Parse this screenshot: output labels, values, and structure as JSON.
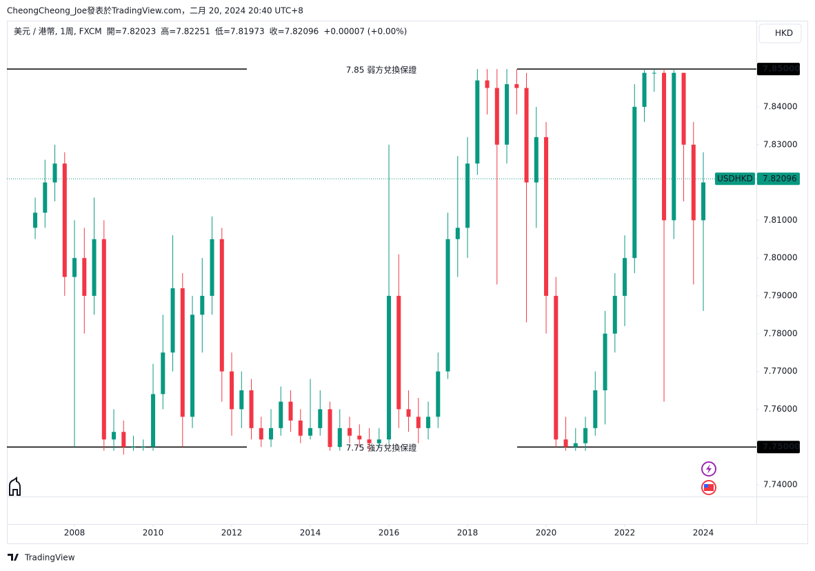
{
  "header": "CheongCheong_Joe發表於TradingView.com，二月 20, 2024 20:40 UTC+8",
  "footer": "TradingView",
  "currency_button": "HKD",
  "legend": {
    "symbol": "美元 / 港幣, 1周, FXCM",
    "ohlc": [
      {
        "label": "開=",
        "value": "7.82023"
      },
      {
        "label": "高=",
        "value": "7.82251"
      },
      {
        "label": "低=",
        "value": "7.81973"
      },
      {
        "label": "收=",
        "value": "7.82096"
      }
    ],
    "change": "+0.00007 (+0.00%)"
  },
  "chart_data": {
    "type": "candlestick",
    "up_color": "#089981",
    "down_color": "#f23645",
    "x": [
      2007.0,
      2007.25,
      2007.5,
      2007.75,
      2008.0,
      2008.25,
      2008.5,
      2008.75,
      2009.0,
      2009.25,
      2009.5,
      2009.75,
      2010.0,
      2010.25,
      2010.5,
      2010.75,
      2011.0,
      2011.25,
      2011.5,
      2011.75,
      2012.0,
      2012.25,
      2012.5,
      2012.75,
      2013.0,
      2013.25,
      2013.5,
      2013.75,
      2014.0,
      2014.25,
      2014.5,
      2014.75,
      2015.0,
      2015.25,
      2015.5,
      2015.75,
      2016.0,
      2016.25,
      2016.5,
      2016.75,
      2017.0,
      2017.25,
      2017.5,
      2017.75,
      2018.0,
      2018.25,
      2018.5,
      2018.75,
      2019.0,
      2019.25,
      2019.5,
      2019.75,
      2020.0,
      2020.25,
      2020.5,
      2020.75,
      2021.0,
      2021.25,
      2021.5,
      2021.75,
      2022.0,
      2022.25,
      2022.5,
      2022.75,
      2023.0,
      2023.25,
      2023.5,
      2023.75,
      2024.0
    ],
    "open": [
      7.808,
      7.812,
      7.82,
      7.825,
      7.795,
      7.8,
      7.79,
      7.805,
      7.752,
      7.754,
      7.75,
      7.75,
      7.75,
      7.764,
      7.775,
      7.792,
      7.758,
      7.785,
      7.79,
      7.805,
      7.77,
      7.76,
      7.765,
      7.755,
      7.752,
      7.755,
      7.762,
      7.757,
      7.753,
      7.755,
      7.76,
      7.75,
      7.755,
      7.753,
      7.752,
      7.751,
      7.752,
      7.79,
      7.76,
      7.758,
      7.755,
      7.758,
      7.77,
      7.805,
      7.808,
      7.825,
      7.847,
      7.845,
      7.83,
      7.846,
      7.845,
      7.82,
      7.832,
      7.79,
      7.752,
      7.75,
      7.751,
      7.755,
      7.765,
      7.78,
      7.79,
      7.8,
      7.84,
      7.849,
      7.849,
      7.81,
      7.849,
      7.83,
      7.81
    ],
    "high": [
      7.816,
      7.826,
      7.83,
      7.828,
      7.81,
      7.808,
      7.816,
      7.81,
      7.76,
      7.757,
      7.753,
      7.752,
      7.772,
      7.785,
      7.806,
      7.796,
      7.79,
      7.8,
      7.811,
      7.808,
      7.775,
      7.77,
      7.768,
      7.758,
      7.76,
      7.766,
      7.765,
      7.76,
      7.768,
      7.765,
      7.762,
      7.76,
      7.758,
      7.756,
      7.755,
      7.755,
      7.83,
      7.801,
      7.765,
      7.763,
      7.762,
      7.775,
      7.812,
      7.827,
      7.832,
      7.85,
      7.85,
      7.85,
      7.85,
      7.85,
      7.849,
      7.84,
      7.836,
      7.795,
      7.758,
      7.755,
      7.758,
      7.77,
      7.786,
      7.796,
      7.806,
      7.846,
      7.85,
      7.85,
      7.85,
      7.85,
      7.849,
      7.836,
      7.828
    ],
    "low": [
      7.805,
      7.808,
      7.815,
      7.79,
      7.75,
      7.78,
      7.785,
      7.749,
      7.749,
      7.748,
      7.749,
      7.749,
      7.749,
      7.76,
      7.77,
      7.75,
      7.755,
      7.775,
      7.785,
      7.762,
      7.753,
      7.755,
      7.752,
      7.75,
      7.75,
      7.753,
      7.754,
      7.751,
      7.752,
      7.753,
      7.749,
      7.749,
      7.751,
      7.75,
      7.749,
      7.75,
      7.751,
      7.755,
      7.754,
      7.751,
      7.752,
      7.755,
      7.768,
      7.795,
      7.8,
      7.822,
      7.838,
      7.793,
      7.825,
      7.838,
      7.783,
      7.808,
      7.78,
      7.75,
      7.749,
      7.749,
      7.749,
      7.753,
      7.756,
      7.775,
      7.782,
      7.796,
      7.836,
      7.844,
      7.762,
      7.805,
      7.815,
      7.793,
      7.786
    ],
    "close": [
      7.812,
      7.82,
      7.825,
      7.795,
      7.8,
      7.79,
      7.805,
      7.752,
      7.754,
      7.75,
      7.75,
      7.75,
      7.764,
      7.775,
      7.792,
      7.758,
      7.785,
      7.79,
      7.805,
      7.77,
      7.76,
      7.765,
      7.755,
      7.752,
      7.755,
      7.762,
      7.757,
      7.753,
      7.755,
      7.76,
      7.75,
      7.755,
      7.753,
      7.752,
      7.751,
      7.752,
      7.79,
      7.76,
      7.758,
      7.755,
      7.758,
      7.77,
      7.805,
      7.808,
      7.825,
      7.847,
      7.845,
      7.83,
      7.846,
      7.845,
      7.82,
      7.832,
      7.79,
      7.752,
      7.75,
      7.751,
      7.755,
      7.765,
      7.78,
      7.79,
      7.8,
      7.84,
      7.849,
      7.849,
      7.81,
      7.849,
      7.83,
      7.81,
      7.82
    ],
    "xlim": [
      2006.28,
      2025.35
    ],
    "xticks": [
      2008,
      2010,
      2012,
      2014,
      2016,
      2018,
      2020,
      2022,
      2024
    ],
    "ylim": [
      7.7369,
      7.8628
    ],
    "yticks": [
      {
        "value": 7.74,
        "label": "7.74000"
      },
      {
        "value": 7.76,
        "label": "7.76000"
      },
      {
        "value": 7.77,
        "label": "7.77000"
      },
      {
        "value": 7.78,
        "label": "7.78000"
      },
      {
        "value": 7.79,
        "label": "7.79000"
      },
      {
        "value": 7.8,
        "label": "7.80000"
      },
      {
        "value": 7.81,
        "label": "7.81000"
      },
      {
        "value": 7.83,
        "label": "7.83000"
      },
      {
        "value": 7.84,
        "label": "7.84000"
      }
    ],
    "levels": [
      {
        "value": 7.85,
        "label": "7.85000",
        "text": "7.85 弱方兌換保證"
      },
      {
        "value": 7.75,
        "label": "7.75000",
        "text": "7.75 強方兌換保證"
      }
    ],
    "last": {
      "value": 7.82096,
      "label": "7.82096",
      "symbol": "USDHKD",
      "color": "#089981"
    }
  }
}
